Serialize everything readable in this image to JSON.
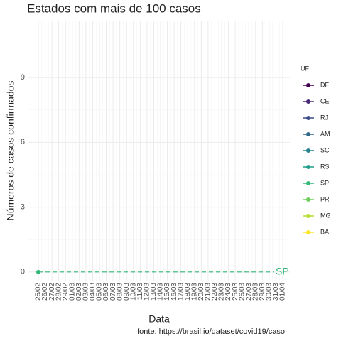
{
  "chart_data": {
    "type": "line",
    "title": "Estados com mais de 100 casos",
    "x_label": "Data",
    "y_label": "Números de casos confirmados",
    "caption": "fonte: https://brasil.io/dataset/covid19/caso",
    "legend_title": "UF",
    "legend_position": "right",
    "grid": true,
    "categories": [
      "25/02",
      "26/02",
      "27/02",
      "28/02",
      "29/02",
      "01/03",
      "02/03",
      "03/03",
      "04/03",
      "05/03",
      "06/03",
      "07/03",
      "08/03",
      "09/03",
      "10/03",
      "11/03",
      "12/03",
      "13/03",
      "14/03",
      "15/03",
      "16/03",
      "17/03",
      "18/03",
      "19/03",
      "20/03",
      "21/03",
      "22/03",
      "23/03",
      "24/03",
      "25/03",
      "26/03",
      "27/03",
      "28/03",
      "29/03",
      "30/03",
      "31/03",
      "01/04"
    ],
    "ylim": [
      -0.4,
      11.6
    ],
    "yticks": [
      0,
      3,
      6,
      9
    ],
    "series": [
      {
        "name": "DF",
        "color": "#440154",
        "values": [
          null,
          null,
          null,
          null,
          null,
          null,
          null,
          null,
          null,
          null,
          null,
          null,
          null,
          null,
          null,
          null,
          null,
          null,
          null,
          null,
          null,
          null,
          null,
          null,
          null,
          null,
          null,
          null,
          null,
          null,
          null,
          null,
          null,
          null,
          null,
          null,
          null
        ]
      },
      {
        "name": "CE",
        "color": "#482878",
        "values": [
          null,
          null,
          null,
          null,
          null,
          null,
          null,
          null,
          null,
          null,
          null,
          null,
          null,
          null,
          null,
          null,
          null,
          null,
          null,
          null,
          null,
          null,
          null,
          null,
          null,
          null,
          null,
          null,
          null,
          null,
          null,
          null,
          null,
          null,
          null,
          null,
          null
        ]
      },
      {
        "name": "RJ",
        "color": "#3E4A89",
        "values": [
          null,
          null,
          null,
          null,
          null,
          null,
          null,
          null,
          null,
          null,
          null,
          null,
          null,
          null,
          null,
          null,
          null,
          null,
          null,
          null,
          null,
          null,
          null,
          null,
          null,
          null,
          null,
          null,
          null,
          null,
          null,
          null,
          null,
          null,
          null,
          null,
          null
        ]
      },
      {
        "name": "AM",
        "color": "#31688E",
        "values": [
          null,
          null,
          null,
          null,
          null,
          null,
          null,
          null,
          null,
          null,
          null,
          null,
          null,
          null,
          null,
          null,
          null,
          null,
          null,
          null,
          null,
          null,
          null,
          null,
          null,
          null,
          null,
          null,
          null,
          null,
          null,
          null,
          null,
          null,
          null,
          null,
          null
        ]
      },
      {
        "name": "SC",
        "color": "#26828E",
        "values": [
          null,
          null,
          null,
          null,
          null,
          null,
          null,
          null,
          null,
          null,
          null,
          null,
          null,
          null,
          null,
          null,
          null,
          null,
          null,
          null,
          null,
          null,
          null,
          null,
          null,
          null,
          null,
          null,
          null,
          null,
          null,
          null,
          null,
          null,
          null,
          null,
          null
        ]
      },
      {
        "name": "RS",
        "color": "#1F9E89",
        "values": [
          null,
          null,
          null,
          null,
          null,
          null,
          null,
          null,
          null,
          null,
          null,
          null,
          null,
          null,
          null,
          null,
          null,
          null,
          null,
          null,
          null,
          null,
          null,
          null,
          null,
          null,
          null,
          null,
          null,
          null,
          null,
          null,
          null,
          null,
          null,
          null,
          null
        ]
      },
      {
        "name": "SP",
        "color": "#35B779",
        "values": [
          0,
          null,
          null,
          null,
          null,
          null,
          null,
          null,
          null,
          null,
          null,
          null,
          null,
          null,
          null,
          null,
          null,
          null,
          null,
          null,
          null,
          null,
          null,
          null,
          null,
          null,
          null,
          null,
          null,
          null,
          null,
          null,
          null,
          null,
          null,
          null,
          null
        ]
      },
      {
        "name": "PR",
        "color": "#6DCD59",
        "values": [
          null,
          null,
          null,
          null,
          null,
          null,
          null,
          null,
          null,
          null,
          null,
          null,
          null,
          null,
          null,
          null,
          null,
          null,
          null,
          null,
          null,
          null,
          null,
          null,
          null,
          null,
          null,
          null,
          null,
          null,
          null,
          null,
          null,
          null,
          null,
          null,
          null
        ]
      },
      {
        "name": "MG",
        "color": "#B4DE2C",
        "values": [
          null,
          null,
          null,
          null,
          null,
          null,
          null,
          null,
          null,
          null,
          null,
          null,
          null,
          null,
          null,
          null,
          null,
          null,
          null,
          null,
          null,
          null,
          null,
          null,
          null,
          null,
          null,
          null,
          null,
          null,
          null,
          null,
          null,
          null,
          null,
          null,
          null
        ]
      },
      {
        "name": "BA",
        "color": "#FDE725",
        "values": [
          null,
          null,
          null,
          null,
          null,
          null,
          null,
          null,
          null,
          null,
          null,
          null,
          null,
          null,
          null,
          null,
          null,
          null,
          null,
          null,
          null,
          null,
          null,
          null,
          null,
          null,
          null,
          null,
          null,
          null,
          null,
          null,
          null,
          null,
          null,
          null,
          null
        ]
      }
    ]
  }
}
